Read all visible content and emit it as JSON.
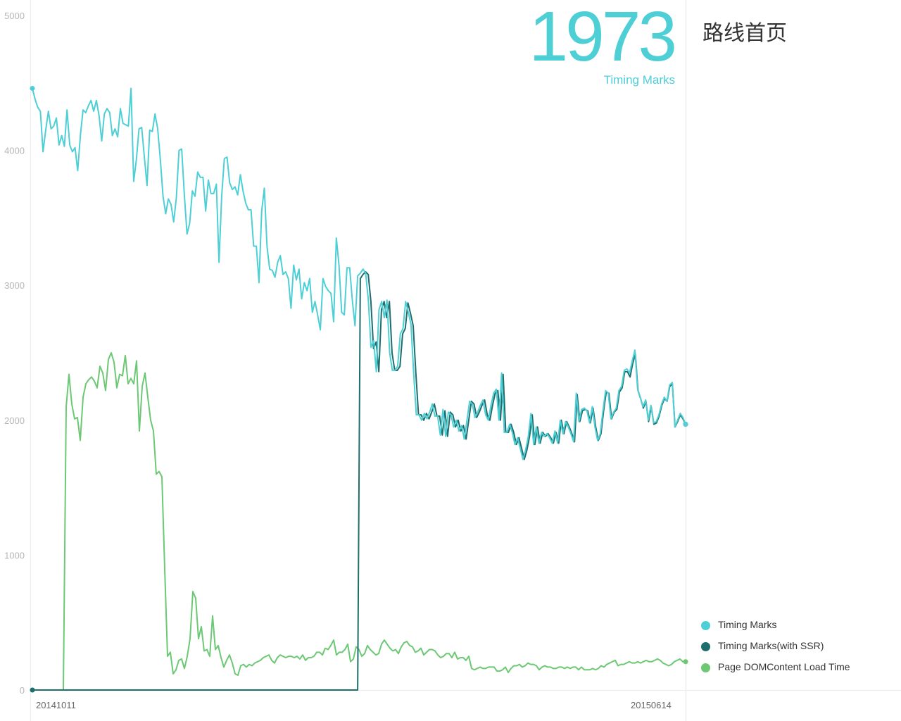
{
  "page": {
    "title": "路线首页"
  },
  "headline": {
    "value": "1973",
    "caption": "Timing Marks"
  },
  "legend": {
    "items": [
      {
        "label": "Timing Marks",
        "color": "#4ecfd6"
      },
      {
        "label": "Timing Marks(with SSR)",
        "color": "#1f6e6e"
      },
      {
        "label": "Page DOMContent Load Time",
        "color": "#6cc874"
      }
    ]
  },
  "chart_data": {
    "type": "line",
    "x": {
      "start_label": "20141011",
      "end_label": "20150614"
    },
    "ylim": [
      0,
      5000
    ],
    "yticks": [
      0,
      1000,
      2000,
      3000,
      4000,
      5000
    ],
    "grid": false,
    "legend_position": "bottom-right",
    "series": [
      {
        "name": "Timing Marks",
        "color": "#4ecfd6",
        "values": [
          4460,
          4380,
          4320,
          4290,
          3990,
          4150,
          4290,
          4160,
          4180,
          4240,
          4040,
          4110,
          4030,
          4300,
          4040,
          3990,
          4020,
          3850,
          4110,
          4300,
          4280,
          4330,
          4370,
          4290,
          4370,
          4260,
          4070,
          4270,
          4310,
          4280,
          4110,
          4160,
          4100,
          4310,
          4200,
          4190,
          4180,
          4460,
          3770,
          3930,
          4160,
          4170,
          3950,
          3740,
          4150,
          4140,
          4270,
          4160,
          3930,
          3660,
          3530,
          3640,
          3600,
          3470,
          3650,
          4000,
          4010,
          3670,
          3380,
          3460,
          3700,
          3660,
          3840,
          3800,
          3800,
          3550,
          3780,
          3680,
          3680,
          3750,
          3170,
          3660,
          3940,
          3950,
          3760,
          3710,
          3730,
          3670,
          3820,
          3700,
          3610,
          3560,
          3560,
          3290,
          3290,
          3020,
          3550,
          3720,
          3290,
          3120,
          3110,
          3060,
          3170,
          3220,
          3080,
          3100,
          3050,
          2830,
          3150,
          3040,
          3120,
          2900,
          3020,
          2960,
          3050,
          2800,
          2880,
          2780,
          2670,
          3050,
          2990,
          2960,
          2940,
          2730,
          3350,
          3150,
          2800,
          2780,
          3130,
          3130,
          2890,
          2700,
          3070,
          3090,
          3120,
          3090,
          2890,
          2540,
          2590,
          2360,
          2820,
          2880,
          2760,
          2890,
          2500,
          2370,
          2370,
          2400,
          2640,
          2680,
          2880,
          2800,
          2710,
          2350,
          2040,
          2040,
          2000,
          2050,
          2010,
          2060,
          2120,
          2030,
          2030,
          1890,
          2080,
          1880,
          2060,
          2040,
          1950,
          2000,
          1920,
          1960,
          1860,
          2000,
          2140,
          2120,
          2020,
          2060,
          2110,
          2150,
          2040,
          2000,
          2110,
          2200,
          2230,
          2000,
          2350,
          1910,
          1910,
          1970,
          1910,
          1820,
          1870,
          1790,
          1710,
          1780,
          1880,
          2050,
          1820,
          1950,
          1830,
          1910,
          1880,
          1900,
          1870,
          1830,
          1920,
          1830,
          2000,
          1900,
          1990,
          1950,
          1900,
          1840,
          2200,
          1990,
          2080,
          2090,
          2070,
          1980,
          2100,
          1950,
          1850,
          1900,
          2070,
          2220,
          2200,
          2010,
          2060,
          2090,
          2220,
          2250,
          2370,
          2380,
          2350,
          2440,
          2520,
          2230,
          2170,
          2100,
          2150,
          2000,
          2110,
          1980,
          1990,
          2040,
          2120,
          2170,
          2140,
          2260,
          2280,
          1950,
          2000,
          2050,
          2020,
          1970
        ]
      },
      {
        "name": "Timing Marks(with SSR)",
        "color": "#1f6e6e",
        "values": [
          0,
          0,
          0,
          0,
          0,
          0,
          0,
          0,
          0,
          0,
          0,
          0,
          0,
          0,
          0,
          0,
          0,
          0,
          0,
          0,
          0,
          0,
          0,
          0,
          0,
          0,
          0,
          0,
          0,
          0,
          0,
          0,
          0,
          0,
          0,
          0,
          0,
          0,
          0,
          0,
          0,
          0,
          0,
          0,
          0,
          0,
          0,
          0,
          0,
          0,
          0,
          0,
          0,
          0,
          0,
          0,
          0,
          0,
          0,
          0,
          0,
          0,
          0,
          0,
          0,
          0,
          0,
          0,
          0,
          0,
          0,
          0,
          0,
          0,
          0,
          0,
          0,
          0,
          0,
          0,
          0,
          0,
          0,
          0,
          0,
          0,
          0,
          0,
          0,
          0,
          0,
          0,
          0,
          0,
          0,
          0,
          0,
          0,
          0,
          0,
          0,
          0,
          0,
          0,
          0,
          0,
          0,
          0,
          0,
          0,
          0,
          0,
          0,
          0,
          0,
          0,
          0,
          0,
          0,
          0,
          0,
          0,
          0,
          0,
          3050,
          3080,
          3100,
          3080,
          2880,
          2530,
          2580,
          2360,
          2820,
          2880,
          2760,
          2880,
          2500,
          2370,
          2370,
          2400,
          2640,
          2680,
          2870,
          2790,
          2700,
          2350,
          2040,
          2040,
          2000,
          2050,
          2010,
          2060,
          2120,
          2030,
          2030,
          1890,
          2070,
          1880,
          2060,
          2040,
          1950,
          2000,
          1920,
          1960,
          1860,
          2000,
          2140,
          2120,
          2020,
          2060,
          2110,
          2150,
          2040,
          2000,
          2110,
          2200,
          2220,
          2000,
          2340,
          1910,
          1910,
          1970,
          1910,
          1820,
          1870,
          1790,
          1710,
          1780,
          1880,
          2040,
          1820,
          1950,
          1830,
          1910,
          1880,
          1900,
          1870,
          1830,
          1910,
          1830,
          2000,
          1900,
          1990,
          1950,
          1900,
          1840,
          2190,
          1990,
          2070,
          2080,
          2070,
          1980,
          2090,
          1950,
          1850,
          1900,
          2070,
          2210,
          2200,
          2010,
          2060,
          2080,
          2210,
          2240,
          2360,
          2360,
          2320,
          2420,
          2490,
          2220,
          2160,
          2090,
          2140,
          1990,
          2100,
          1970,
          1980,
          2030,
          2110,
          2160,
          2140,
          2250,
          2270,
          1950,
          1990,
          2040,
          2010,
          1970
        ]
      },
      {
        "name": "Page DOMContent Load Time",
        "color": "#6cc874",
        "values": [
          0,
          0,
          0,
          0,
          0,
          0,
          0,
          0,
          0,
          0,
          0,
          0,
          2100,
          2340,
          2120,
          2010,
          2020,
          1850,
          2170,
          2270,
          2300,
          2320,
          2290,
          2240,
          2400,
          2350,
          2220,
          2450,
          2500,
          2430,
          2240,
          2340,
          2330,
          2480,
          2270,
          2310,
          2270,
          2440,
          1920,
          2250,
          2350,
          2170,
          2000,
          1920,
          1600,
          1620,
          1580,
          900,
          250,
          280,
          120,
          150,
          220,
          230,
          160,
          250,
          380,
          730,
          680,
          380,
          470,
          290,
          300,
          250,
          550,
          300,
          330,
          240,
          170,
          220,
          260,
          200,
          120,
          110,
          180,
          190,
          170,
          190,
          180,
          200,
          210,
          220,
          240,
          250,
          260,
          220,
          200,
          240,
          260,
          250,
          240,
          250,
          250,
          240,
          250,
          230,
          260,
          220,
          240,
          240,
          250,
          280,
          280,
          260,
          310,
          300,
          330,
          370,
          260,
          280,
          280,
          300,
          340,
          210,
          230,
          320,
          300,
          250,
          270,
          330,
          300,
          280,
          260,
          270,
          340,
          370,
          340,
          310,
          290,
          300,
          270,
          320,
          350,
          360,
          330,
          320,
          280,
          290,
          310,
          260,
          280,
          300,
          300,
          290,
          260,
          240,
          250,
          270,
          270,
          240,
          280,
          230,
          240,
          240,
          220,
          250,
          160,
          150,
          160,
          170,
          160,
          160,
          170,
          170,
          170,
          140,
          140,
          150,
          170,
          130,
          160,
          180,
          180,
          190,
          170,
          180,
          200,
          190,
          190,
          180,
          150,
          170,
          180,
          170,
          170,
          160,
          160,
          170,
          170,
          160,
          170,
          160,
          170,
          170,
          150,
          170,
          150,
          150,
          150,
          160,
          150,
          160,
          180,
          170,
          190,
          200,
          210,
          220,
          180,
          190,
          190,
          200,
          210,
          200,
          200,
          210,
          200,
          210,
          220,
          210,
          210,
          220,
          230,
          220,
          200,
          190,
          180,
          190,
          210,
          220,
          230,
          210,
          210
        ]
      }
    ]
  }
}
